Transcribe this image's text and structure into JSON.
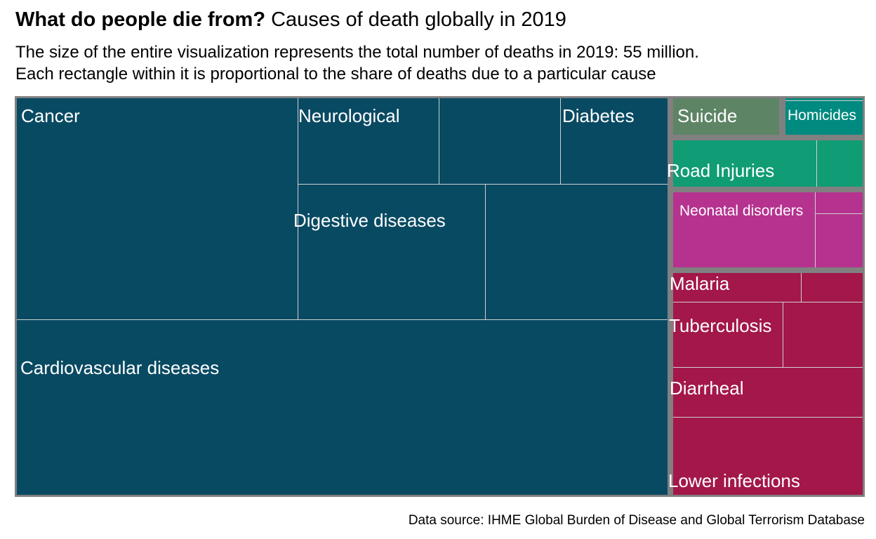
{
  "header": {
    "title_bold": "What do people die from?",
    "title_rest": "Causes of death globally in 2019",
    "subtitle_line1": "The size of the entire visualization represents the total number of deaths in 2019: 55 million.",
    "subtitle_line2": "Each rectangle within it is proportional to the share of deaths due to a particular cause"
  },
  "chart_data": {
    "type": "treemap",
    "total_deaths": "55 million",
    "groups": [
      {
        "color": "#094A63",
        "items": [
          "Cancer",
          "Neurological",
          "",
          "Diabetes",
          "Digestive diseases",
          "",
          "Cardiovascular diseases"
        ]
      },
      {
        "color": "#5E8466",
        "items": [
          "Suicide"
        ]
      },
      {
        "color": "#008A80",
        "items": [
          "Homicides"
        ]
      },
      {
        "color": "#109C74",
        "items": [
          "Road Injuries",
          ""
        ]
      },
      {
        "color": "#B5338F",
        "items": [
          "Neonatal disorders",
          "",
          ""
        ]
      },
      {
        "color": "#A3174A",
        "items": [
          "Malaria",
          "",
          "Tuberculosis",
          "",
          "Diarrheal",
          "Lower infections"
        ]
      }
    ],
    "labels": {
      "cancer": "Cancer",
      "neurological": "Neurological",
      "diabetes": "Diabetes",
      "digestive": "Digestive diseases",
      "cardiovascular": "Cardiovascular diseases",
      "suicide": "Suicide",
      "homicides": "Homicides",
      "road": "Road Injuries",
      "neonatal": "Neonatal disorders",
      "malaria": "Malaria",
      "tuberculosis": "Tuberculosis",
      "diarrheal": "Diarrheal",
      "lower": "Lower infections"
    }
  },
  "footer": {
    "source": "Data source: IHME Global Burden of Disease and Global Terrorism Database"
  }
}
